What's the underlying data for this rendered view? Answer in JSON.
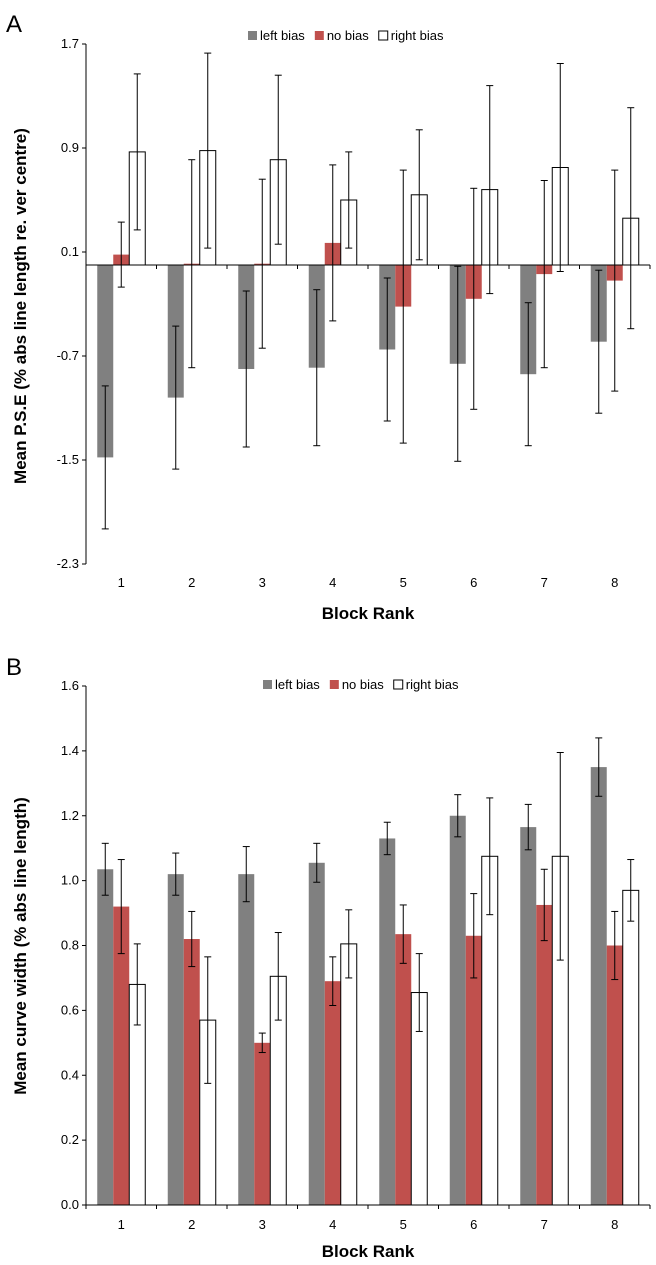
{
  "chart_data": [
    {
      "panel": "A",
      "type": "bar",
      "categories": [
        "1",
        "2",
        "3",
        "4",
        "5",
        "6",
        "7",
        "8"
      ],
      "xlabel": "Block Rank",
      "ylabel": "Mean P.S.E (% abs line length re. ver centre)",
      "ylim": [
        -2.3,
        1.7
      ],
      "yticks": [
        "-2.3",
        "-1.5",
        "-0.7",
        "0.1",
        "0.9",
        "1.7"
      ],
      "legend_position": "top-center",
      "grid": false,
      "series": [
        {
          "name": "left bias",
          "color": "#808080",
          "values": [
            -1.48,
            -1.02,
            -0.8,
            -0.79,
            -0.65,
            -0.76,
            -0.84,
            -0.59
          ],
          "errors": [
            0.55,
            0.55,
            0.6,
            0.6,
            0.55,
            0.75,
            0.55,
            0.55
          ]
        },
        {
          "name": "no bias",
          "color": "#c0504d",
          "values": [
            0.08,
            0.01,
            0.01,
            0.17,
            -0.32,
            -0.26,
            -0.07,
            -0.12
          ],
          "errors": [
            0.25,
            0.8,
            0.65,
            0.6,
            1.05,
            0.85,
            0.72,
            0.85
          ]
        },
        {
          "name": "right bias",
          "color": "#ffffff",
          "values": [
            0.87,
            0.88,
            0.81,
            0.5,
            0.54,
            0.58,
            0.75,
            0.36
          ],
          "errors": [
            0.6,
            0.75,
            0.65,
            0.37,
            0.5,
            0.8,
            0.8,
            0.85
          ]
        }
      ]
    },
    {
      "panel": "B",
      "type": "bar",
      "categories": [
        "1",
        "2",
        "3",
        "4",
        "5",
        "6",
        "7",
        "8"
      ],
      "xlabel": "Block Rank",
      "ylabel": "Mean curve width (% abs line length)",
      "ylim": [
        0.0,
        1.6
      ],
      "yticks": [
        "0.0",
        "0.2",
        "0.4",
        "0.6",
        "0.8",
        "1.0",
        "1.2",
        "1.4",
        "1.6"
      ],
      "legend_position": "top-center",
      "grid": false,
      "series": [
        {
          "name": "left bias",
          "color": "#808080",
          "values": [
            1.035,
            1.02,
            1.02,
            1.055,
            1.13,
            1.2,
            1.165,
            1.35
          ],
          "errors": [
            0.08,
            0.065,
            0.085,
            0.06,
            0.05,
            0.065,
            0.07,
            0.09
          ]
        },
        {
          "name": "no bias",
          "color": "#c0504d",
          "values": [
            0.92,
            0.82,
            0.5,
            0.69,
            0.835,
            0.83,
            0.925,
            0.8
          ],
          "errors": [
            0.145,
            0.085,
            0.03,
            0.075,
            0.09,
            0.13,
            0.11,
            0.105
          ]
        },
        {
          "name": "right bias",
          "color": "#ffffff",
          "values": [
            0.68,
            0.57,
            0.705,
            0.805,
            0.655,
            1.075,
            1.075,
            0.97
          ],
          "errors": [
            0.125,
            0.195,
            0.135,
            0.105,
            0.12,
            0.18,
            0.32,
            0.095
          ]
        }
      ]
    }
  ]
}
